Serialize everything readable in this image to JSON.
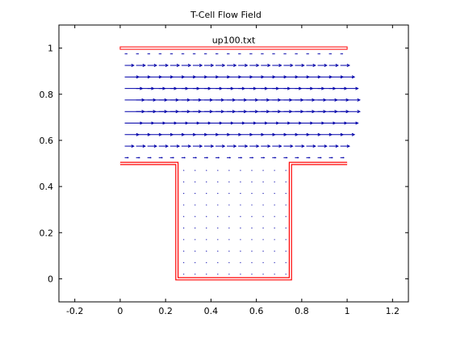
{
  "chart_data": {
    "type": "quiver",
    "title": "T-Cell Flow Field",
    "annotation": "up100.txt",
    "xlabel": "",
    "ylabel": "",
    "xlim": [
      -0.27,
      1.27
    ],
    "ylim": [
      -0.1,
      1.1
    ],
    "grid": false,
    "x_ticks": [
      -0.2,
      0,
      0.2,
      0.4,
      0.6,
      0.8,
      1,
      1.2
    ],
    "y_ticks": [
      0,
      0.2,
      0.4,
      0.6,
      0.8,
      1
    ],
    "x_tick_labels": [
      "-0.2",
      "0",
      "0.2",
      "0.4",
      "0.6",
      "0.8",
      "1",
      "1.2"
    ],
    "y_tick_labels": [
      "0",
      "0.2",
      "0.4",
      "0.6",
      "0.8",
      "1"
    ],
    "boundary": {
      "color": "#ff0000",
      "top_wall": {
        "x": [
          0,
          1
        ],
        "y": 1.0
      },
      "outline": [
        [
          0,
          0.5
        ],
        [
          0.25,
          0.5
        ],
        [
          0.25,
          0
        ],
        [
          0.75,
          0
        ],
        [
          0.75,
          0.5
        ],
        [
          1,
          0.5
        ]
      ]
    },
    "vector_color": "#0000aa",
    "channel": {
      "x_start": 0.02,
      "x_step": 0.05,
      "count": 20,
      "rows": [
        {
          "y": 0.975,
          "u": 0.012,
          "v": 0
        },
        {
          "y": 0.925,
          "u": 0.04,
          "v": 0
        },
        {
          "y": 0.875,
          "u": 0.062,
          "v": 0
        },
        {
          "y": 0.825,
          "u": 0.078,
          "v": 0
        },
        {
          "y": 0.775,
          "u": 0.086,
          "v": 0
        },
        {
          "y": 0.725,
          "u": 0.086,
          "v": 0
        },
        {
          "y": 0.675,
          "u": 0.078,
          "v": 0
        },
        {
          "y": 0.625,
          "u": 0.062,
          "v": 0
        },
        {
          "y": 0.575,
          "u": 0.04,
          "v": 0
        },
        {
          "y": 0.525,
          "u": 0.015,
          "v": 0
        }
      ]
    },
    "cavity": {
      "x_start": 0.28,
      "x_step": 0.05,
      "count": 10,
      "y_values": [
        0.47,
        0.42,
        0.37,
        0.32,
        0.27,
        0.22,
        0.17,
        0.12,
        0.07,
        0.02
      ]
    }
  }
}
